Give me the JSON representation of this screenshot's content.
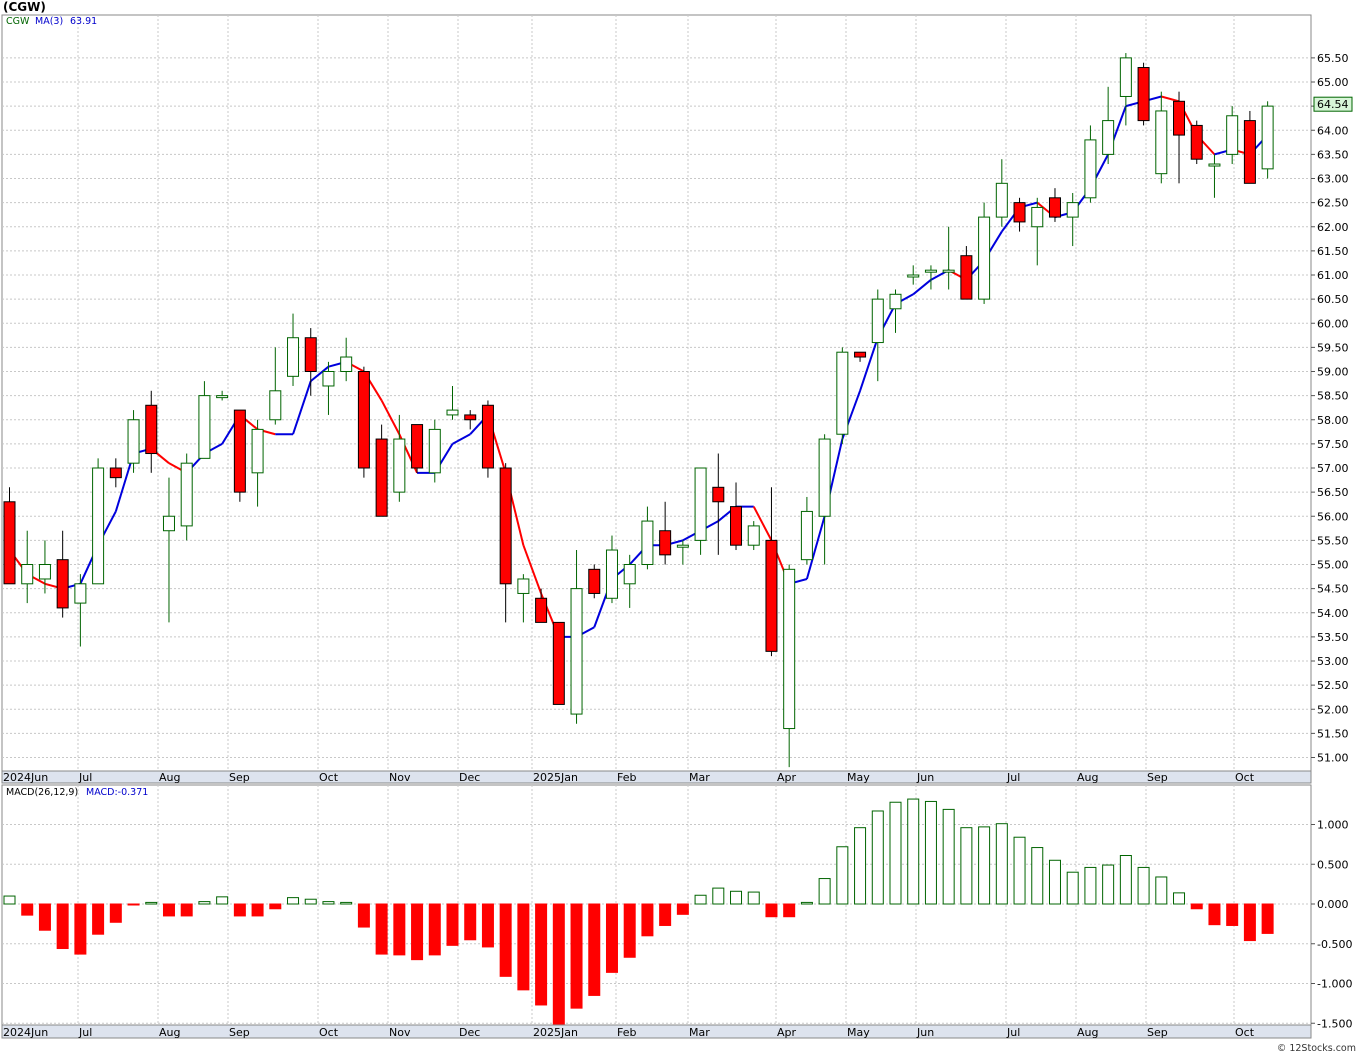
{
  "title": "(CGW)",
  "watermark": "© 12Stocks.com",
  "price_panel": {
    "legend_symbol": "CGW",
    "legend_ma": "MA(3)",
    "legend_ma_value": "63.91",
    "last_price_label": "64.54",
    "last_price": 64.54,
    "y_ticks": [
      "51.00",
      "51.50",
      "52.00",
      "52.50",
      "53.00",
      "53.50",
      "54.00",
      "54.50",
      "55.00",
      "55.50",
      "56.00",
      "56.50",
      "57.00",
      "57.50",
      "58.00",
      "58.50",
      "59.00",
      "59.50",
      "60.00",
      "60.50",
      "61.00",
      "61.50",
      "62.00",
      "62.50",
      "63.00",
      "63.50",
      "64.00",
      "64.50",
      "65.00",
      "65.50"
    ],
    "x_labels": [
      "2024Jun",
      "Jul",
      "Aug",
      "Sep",
      "Oct",
      "Nov",
      "Dec",
      "2025Jan",
      "Feb",
      "Mar",
      "Apr",
      "May",
      "Jun",
      "Jul",
      "Aug",
      "Sep",
      "Oct"
    ]
  },
  "macd_panel": {
    "legend": "MACD(26,12,9)",
    "legend_value": "MACD:-0.371",
    "y_ticks": [
      "1.000",
      "0.500",
      "0.000",
      "-0.500",
      "-1.000",
      "-1.500"
    ],
    "x_labels": [
      "2024Jun",
      "Jul",
      "Aug",
      "Sep",
      "Oct",
      "Nov",
      "Dec",
      "2025Jan",
      "Feb",
      "Mar",
      "Apr",
      "May",
      "Jun",
      "Jul",
      "Aug",
      "Sep",
      "Oct"
    ]
  },
  "colors": {
    "up": "#006400",
    "down": "#ff0000",
    "ma_up": "#0000dd",
    "ma_down": "#ff0000",
    "grid": "#c8c8c8",
    "axis_band": "#dde3ee"
  },
  "chart_data": {
    "type": "candlestick",
    "ylim": [
      50.8,
      65.9
    ],
    "macd_ylim": [
      -1.55,
      1.4
    ],
    "candles": [
      [
        56.3,
        56.6,
        54.6,
        54.6
      ],
      [
        54.6,
        55.7,
        54.2,
        55.0
      ],
      [
        54.7,
        55.5,
        54.4,
        55.0
      ],
      [
        55.1,
        55.7,
        53.9,
        54.1
      ],
      [
        54.2,
        54.8,
        53.3,
        54.6
      ],
      [
        54.6,
        57.2,
        54.6,
        57.0
      ],
      [
        57.0,
        57.2,
        56.6,
        56.8
      ],
      [
        57.1,
        58.2,
        56.9,
        58.0
      ],
      [
        58.3,
        58.6,
        56.9,
        57.3
      ],
      [
        55.7,
        56.8,
        53.8,
        56.0
      ],
      [
        55.8,
        57.3,
        55.5,
        57.1
      ],
      [
        57.2,
        58.8,
        57.2,
        58.5
      ],
      [
        58.5,
        58.6,
        58.4,
        58.5
      ],
      [
        58.2,
        58.2,
        56.3,
        56.5
      ],
      [
        56.9,
        58.0,
        56.2,
        57.8
      ],
      [
        58.0,
        59.5,
        57.9,
        58.6
      ],
      [
        58.9,
        60.2,
        58.7,
        59.7
      ],
      [
        59.7,
        59.9,
        58.5,
        59.0
      ],
      [
        58.7,
        59.2,
        58.1,
        59.0
      ],
      [
        59.0,
        59.7,
        58.8,
        59.3
      ],
      [
        59.0,
        59.1,
        56.8,
        57.0
      ],
      [
        57.6,
        57.9,
        56.0,
        56.0
      ],
      [
        56.5,
        58.1,
        56.3,
        57.6
      ],
      [
        57.9,
        57.9,
        56.9,
        57.0
      ],
      [
        56.9,
        58.0,
        56.7,
        57.8
      ],
      [
        58.1,
        58.7,
        58.0,
        58.2
      ],
      [
        58.1,
        58.2,
        57.8,
        58.0
      ],
      [
        58.3,
        58.4,
        56.8,
        57.0
      ],
      [
        57.0,
        57.1,
        53.8,
        54.6
      ],
      [
        54.4,
        54.8,
        53.8,
        54.7
      ],
      [
        54.3,
        54.5,
        53.8,
        53.8
      ],
      [
        53.8,
        53.8,
        52.1,
        52.1
      ],
      [
        51.9,
        55.3,
        51.7,
        54.5
      ],
      [
        54.9,
        55.0,
        54.3,
        54.4
      ],
      [
        54.3,
        55.6,
        54.2,
        55.3
      ],
      [
        54.6,
        55.2,
        54.1,
        55.0
      ],
      [
        55.0,
        56.2,
        54.9,
        55.9
      ],
      [
        55.7,
        56.3,
        55.0,
        55.2
      ],
      [
        55.4,
        55.5,
        55.0,
        55.4
      ],
      [
        55.5,
        57.0,
        55.2,
        57.0
      ],
      [
        56.6,
        57.3,
        55.2,
        56.3
      ],
      [
        56.2,
        56.7,
        55.3,
        55.4
      ],
      [
        55.4,
        55.9,
        55.3,
        55.8
      ],
      [
        55.5,
        56.6,
        53.1,
        53.2
      ],
      [
        51.6,
        55.0,
        50.8,
        54.9
      ],
      [
        55.1,
        56.4,
        55.0,
        56.1
      ],
      [
        56.0,
        57.7,
        55.0,
        57.6
      ],
      [
        57.7,
        59.5,
        57.5,
        59.4
      ],
      [
        59.4,
        59.4,
        59.2,
        59.3
      ],
      [
        59.6,
        60.7,
        58.8,
        60.5
      ],
      [
        60.3,
        60.7,
        59.8,
        60.6
      ],
      [
        61.0,
        61.2,
        60.8,
        61.0
      ],
      [
        61.1,
        61.2,
        60.7,
        61.1
      ],
      [
        61.1,
        62.0,
        60.7,
        61.1
      ],
      [
        61.4,
        61.6,
        60.5,
        60.5
      ],
      [
        60.5,
        62.5,
        60.4,
        62.2
      ],
      [
        62.2,
        63.4,
        62.0,
        62.9
      ],
      [
        62.5,
        62.6,
        61.9,
        62.1
      ],
      [
        62.0,
        62.6,
        61.2,
        62.4
      ],
      [
        62.6,
        62.8,
        62.1,
        62.2
      ],
      [
        62.2,
        62.7,
        61.6,
        62.5
      ],
      [
        62.6,
        64.1,
        62.5,
        63.8
      ],
      [
        63.5,
        64.9,
        63.3,
        64.2
      ],
      [
        64.7,
        65.6,
        64.1,
        65.5
      ],
      [
        65.3,
        65.4,
        64.1,
        64.2
      ],
      [
        63.1,
        64.8,
        62.9,
        64.4
      ],
      [
        64.6,
        64.8,
        62.9,
        63.9
      ],
      [
        64.1,
        64.2,
        63.3,
        63.4
      ],
      [
        63.3,
        63.5,
        62.6,
        63.3
      ],
      [
        63.5,
        64.5,
        63.3,
        64.3
      ],
      [
        64.2,
        64.4,
        62.9,
        62.9
      ],
      [
        63.2,
        64.6,
        63.0,
        64.5
      ]
    ],
    "ma": [
      55.3,
      54.8,
      54.6,
      54.5,
      54.6,
      55.4,
      56.1,
      57.3,
      57.4,
      57.1,
      56.9,
      57.3,
      57.5,
      58.1,
      57.8,
      57.7,
      57.7,
      58.8,
      59.1,
      59.2,
      59.0,
      58.4,
      57.7,
      56.9,
      56.9,
      57.5,
      57.7,
      58.1,
      56.9,
      55.4,
      54.4,
      53.5,
      53.5,
      53.7,
      54.7,
      55.0,
      55.4,
      55.4,
      55.5,
      55.7,
      55.9,
      56.2,
      56.2,
      55.5,
      54.6,
      54.7,
      56.0,
      57.6,
      58.6,
      59.7,
      60.4,
      60.6,
      60.9,
      61.1,
      60.9,
      61.3,
      61.9,
      62.4,
      62.5,
      62.2,
      62.3,
      62.8,
      63.5,
      64.5,
      64.6,
      64.7,
      64.6,
      63.9,
      63.5,
      63.6,
      63.5,
      63.9
    ],
    "macd_hist": [
      0.1,
      -0.14,
      -0.33,
      -0.56,
      -0.63,
      -0.38,
      -0.23,
      -0.01,
      0.02,
      -0.15,
      -0.15,
      0.03,
      0.09,
      -0.15,
      -0.15,
      -0.06,
      0.08,
      0.06,
      0.03,
      0.02,
      -0.29,
      -0.63,
      -0.64,
      -0.7,
      -0.64,
      -0.52,
      -0.45,
      -0.54,
      -0.91,
      -1.08,
      -1.27,
      -1.51,
      -1.31,
      -1.15,
      -0.86,
      -0.67,
      -0.4,
      -0.27,
      -0.13,
      0.11,
      0.2,
      0.16,
      0.15,
      -0.16,
      -0.16,
      0.02,
      0.32,
      0.72,
      0.96,
      1.17,
      1.28,
      1.32,
      1.29,
      1.19,
      0.96,
      0.97,
      1.01,
      0.84,
      0.71,
      0.55,
      0.4,
      0.46,
      0.49,
      0.61,
      0.46,
      0.34,
      0.14,
      -0.06,
      -0.26,
      -0.27,
      -0.46,
      -0.37
    ]
  }
}
